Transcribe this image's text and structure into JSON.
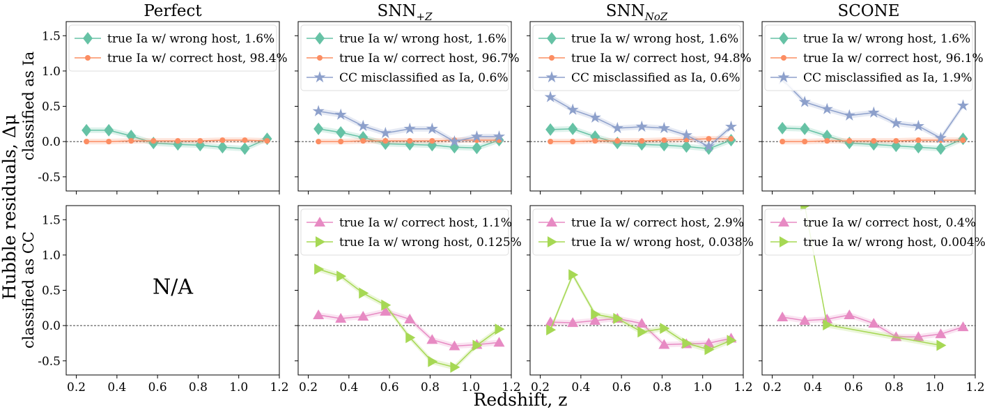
{
  "colors": {
    "teal": "#66c2a5",
    "orange": "#fc8d62",
    "blue": "#8da0cb",
    "pink": "#e78ac3",
    "green": "#a6d854"
  },
  "figure": {
    "ylabel_outer": "Hubble residuals, Δμ",
    "ylabel_top": "classified as Ia",
    "ylabel_bottom": "classified as CC",
    "xlabel": "Redshift, z"
  },
  "chart_data": [
    {
      "type": "line",
      "panel": "top-1",
      "title": "Perfect",
      "xlim": [
        0.15,
        1.2
      ],
      "ylim": [
        -0.7,
        1.7
      ],
      "xticks": [
        "0.2",
        "0.4",
        "0.6",
        "0.8",
        "1.0",
        "1.2"
      ],
      "yticks": [
        "-0.5",
        "0.0",
        "0.5",
        "1.0",
        "1.5"
      ],
      "legend_placement": "upper-left",
      "series": [
        {
          "name": "true Ia w/ wrong host, 1.6%",
          "color": "#66c2a5",
          "marker": "diamond",
          "x": [
            0.25,
            0.36,
            0.47,
            0.58,
            0.7,
            0.81,
            0.92,
            1.03,
            1.14
          ],
          "y": [
            0.16,
            0.16,
            0.08,
            -0.02,
            -0.04,
            -0.05,
            -0.08,
            -0.1,
            0.04
          ]
        },
        {
          "name": "true Ia w/ correct host, 98.4%",
          "color": "#fc8d62",
          "marker": "circle",
          "x": [
            0.25,
            0.36,
            0.47,
            0.58,
            0.7,
            0.81,
            0.92,
            1.03,
            1.14
          ],
          "y": [
            0.0,
            0.0,
            0.01,
            0.01,
            0.01,
            0.01,
            0.02,
            0.02,
            0.01
          ]
        }
      ]
    },
    {
      "type": "line",
      "panel": "top-2",
      "title": "SNN+Z",
      "xlim": [
        0.15,
        1.2
      ],
      "ylim": [
        -0.7,
        1.7
      ],
      "xticks": [
        "0.2",
        "0.4",
        "0.6",
        "0.8",
        "1.0",
        "1.2"
      ],
      "legend_placement": "upper-left",
      "series": [
        {
          "name": "true Ia w/ wrong host, 1.6%",
          "color": "#66c2a5",
          "marker": "diamond",
          "x": [
            0.25,
            0.36,
            0.47,
            0.58,
            0.7,
            0.81,
            0.92,
            1.03,
            1.14
          ],
          "y": [
            0.18,
            0.13,
            0.06,
            -0.03,
            -0.04,
            -0.05,
            -0.08,
            -0.09,
            0.02
          ]
        },
        {
          "name": "true Ia w/ correct host, 96.7%",
          "color": "#fc8d62",
          "marker": "circle",
          "x": [
            0.25,
            0.36,
            0.47,
            0.58,
            0.7,
            0.81,
            0.92,
            1.03,
            1.14
          ],
          "y": [
            0.0,
            0.0,
            0.01,
            0.01,
            0.01,
            0.01,
            0.02,
            0.02,
            0.02
          ]
        },
        {
          "name": "CC misclassified as Ia, 0.6%",
          "color": "#8da0cb",
          "marker": "star",
          "x": [
            0.25,
            0.36,
            0.47,
            0.58,
            0.7,
            0.81,
            0.92,
            1.03,
            1.14
          ],
          "y": [
            0.43,
            0.38,
            0.22,
            0.12,
            0.18,
            0.18,
            0.0,
            0.07,
            0.07
          ]
        }
      ]
    },
    {
      "type": "line",
      "panel": "top-3",
      "title": "SNNNoZ",
      "xlim": [
        0.15,
        1.2
      ],
      "ylim": [
        -0.7,
        1.7
      ],
      "xticks": [
        "0.2",
        "0.4",
        "0.6",
        "0.8",
        "1.0",
        "1.2"
      ],
      "legend_placement": "upper-left",
      "series": [
        {
          "name": "true Ia w/ wrong host, 1.6%",
          "color": "#66c2a5",
          "marker": "diamond",
          "x": [
            0.25,
            0.36,
            0.47,
            0.58,
            0.7,
            0.81,
            0.92,
            1.03,
            1.14
          ],
          "y": [
            0.17,
            0.18,
            0.07,
            -0.02,
            -0.04,
            -0.05,
            -0.07,
            -0.1,
            0.02
          ]
        },
        {
          "name": "true Ia w/ correct host, 94.8%",
          "color": "#fc8d62",
          "marker": "circle",
          "x": [
            0.25,
            0.36,
            0.47,
            0.58,
            0.7,
            0.81,
            0.92,
            1.03,
            1.14
          ],
          "y": [
            0.0,
            0.0,
            0.01,
            0.01,
            0.01,
            0.02,
            0.03,
            0.04,
            0.04
          ]
        },
        {
          "name": "CC misclassified as Ia, 0.6%",
          "color": "#8da0cb",
          "marker": "star",
          "x": [
            0.25,
            0.36,
            0.47,
            0.58,
            0.7,
            0.81,
            0.92,
            1.03,
            1.14
          ],
          "y": [
            0.63,
            0.45,
            0.34,
            0.19,
            0.21,
            0.19,
            0.09,
            -0.07,
            0.21
          ]
        }
      ]
    },
    {
      "type": "line",
      "panel": "top-4",
      "title": "SCONE",
      "xlim": [
        0.15,
        1.2
      ],
      "ylim": [
        -0.7,
        1.7
      ],
      "xticks": [
        "0.2",
        "0.4",
        "0.6",
        "0.8",
        "1.0",
        "1.2"
      ],
      "legend_placement": "upper-left",
      "series": [
        {
          "name": "true Ia w/ wrong host, 1.6%",
          "color": "#66c2a5",
          "marker": "diamond",
          "x": [
            0.25,
            0.36,
            0.47,
            0.58,
            0.7,
            0.81,
            0.92,
            1.03,
            1.14
          ],
          "y": [
            0.19,
            0.18,
            0.08,
            -0.02,
            -0.04,
            -0.06,
            -0.08,
            -0.1,
            0.04
          ]
        },
        {
          "name": "true Ia w/ correct host, 96.1%",
          "color": "#fc8d62",
          "marker": "circle",
          "x": [
            0.25,
            0.36,
            0.47,
            0.58,
            0.7,
            0.81,
            0.92,
            1.03,
            1.14
          ],
          "y": [
            0.0,
            0.0,
            0.01,
            0.01,
            0.01,
            0.01,
            0.02,
            0.02,
            0.02
          ]
        },
        {
          "name": "CC misclassified as Ia, 1.9%",
          "color": "#8da0cb",
          "marker": "star",
          "x": [
            0.25,
            0.36,
            0.47,
            0.58,
            0.7,
            0.81,
            0.92,
            1.03,
            1.14
          ],
          "y": [
            0.88,
            0.56,
            0.46,
            0.37,
            0.41,
            0.26,
            0.22,
            0.05,
            0.51
          ]
        }
      ]
    },
    {
      "type": "line",
      "panel": "bottom-1",
      "title": "",
      "xlim": [
        0.15,
        1.2
      ],
      "ylim": [
        -0.7,
        1.7
      ],
      "xticks": [
        "0.2",
        "0.4",
        "0.6",
        "0.8",
        "1.0",
        "1.2"
      ],
      "yticks": [
        "-0.5",
        "0.0",
        "0.5",
        "1.0",
        "1.5"
      ],
      "annotation": "N/A",
      "series": []
    },
    {
      "type": "line",
      "panel": "bottom-2",
      "title": "",
      "xlim": [
        0.15,
        1.2
      ],
      "ylim": [
        -0.7,
        1.7
      ],
      "xticks": [
        "0.2",
        "0.4",
        "0.6",
        "0.8",
        "1.0",
        "1.2"
      ],
      "legend_placement": "upper-left",
      "series": [
        {
          "name": "true Ia w/ correct host, 1.1%",
          "color": "#e78ac3",
          "marker": "triangle-up",
          "x": [
            0.25,
            0.36,
            0.47,
            0.58,
            0.7,
            0.81,
            0.92,
            1.03,
            1.14
          ],
          "y": [
            0.15,
            0.1,
            0.13,
            0.2,
            0.09,
            -0.2,
            -0.29,
            -0.27,
            -0.24
          ]
        },
        {
          "name": "true Ia w/ wrong host, 0.125%",
          "color": "#a6d854",
          "marker": "triangle-right",
          "x": [
            0.25,
            0.36,
            0.47,
            0.58,
            0.7,
            0.81,
            0.92,
            1.03,
            1.14
          ],
          "y": [
            0.8,
            0.7,
            0.46,
            0.29,
            -0.17,
            -0.51,
            -0.59,
            -0.28,
            -0.05
          ]
        }
      ]
    },
    {
      "type": "line",
      "panel": "bottom-3",
      "title": "",
      "xlim": [
        0.15,
        1.2
      ],
      "ylim": [
        -0.7,
        1.7
      ],
      "xticks": [
        "0.2",
        "0.4",
        "0.6",
        "0.8",
        "1.0",
        "1.2"
      ],
      "legend_placement": "upper-left",
      "series": [
        {
          "name": "true Ia w/ correct host, 2.9%",
          "color": "#e78ac3",
          "marker": "triangle-up",
          "x": [
            0.25,
            0.36,
            0.47,
            0.58,
            0.7,
            0.81,
            0.92,
            1.03,
            1.14
          ],
          "y": [
            0.05,
            0.04,
            0.07,
            0.1,
            0.03,
            -0.27,
            -0.26,
            -0.25,
            -0.18
          ]
        },
        {
          "name": "true Ia w/ wrong host, 0.038%",
          "color": "#a6d854",
          "marker": "triangle-right",
          "x": [
            0.25,
            0.36,
            0.47,
            0.58,
            0.7,
            0.81,
            0.92,
            1.03,
            1.14
          ],
          "y": [
            -0.06,
            0.72,
            0.16,
            0.1,
            -0.09,
            -0.04,
            -0.25,
            -0.34,
            -0.21
          ]
        }
      ]
    },
    {
      "type": "line",
      "panel": "bottom-4",
      "title": "",
      "xlim": [
        0.15,
        1.2
      ],
      "ylim": [
        -0.7,
        1.7
      ],
      "xticks": [
        "0.2",
        "0.4",
        "0.6",
        "0.8",
        "1.0",
        "1.2"
      ],
      "legend_placement": "upper-left",
      "series": [
        {
          "name": "true Ia w/ correct host, 0.4%",
          "color": "#e78ac3",
          "marker": "triangle-up",
          "x": [
            0.25,
            0.36,
            0.47,
            0.58,
            0.7,
            0.81,
            0.92,
            1.03,
            1.14
          ],
          "y": [
            0.12,
            0.07,
            0.09,
            0.15,
            0.03,
            -0.16,
            -0.16,
            -0.12,
            -0.02
          ]
        },
        {
          "name": "true Ia w/ wrong host, 0.004%",
          "color": "#a6d854",
          "marker": "triangle-right",
          "x": [
            0.36,
            0.47,
            1.03
          ],
          "y": [
            1.7,
            0.01,
            -0.28
          ]
        }
      ]
    }
  ]
}
